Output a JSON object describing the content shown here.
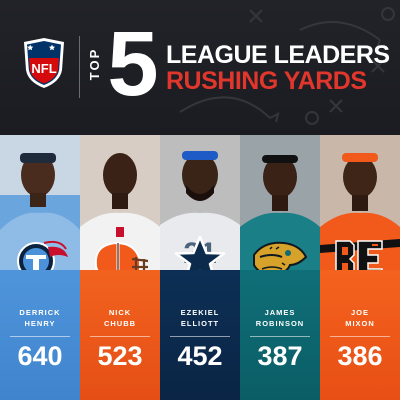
{
  "header": {
    "logo_text": "NFL",
    "top_word": "TOP",
    "top_number": "5",
    "title_line1": "LEAGUE LEADERS",
    "title_line2": "RUSHING YARDS"
  },
  "colors": {
    "background": "#1c1d22",
    "accent_red": "#e0362c"
  },
  "players": [
    {
      "first": "DERRICK",
      "last": "HENRY",
      "yards": "640",
      "team_icon": "titans-logo-icon",
      "panel_color": "#4b92db"
    },
    {
      "first": "NICK",
      "last": "CHUBB",
      "yards": "523",
      "team_icon": "browns-helmet-icon",
      "panel_color": "#f0561f"
    },
    {
      "first": "EZEKIEL",
      "last": "ELLIOTT",
      "yards": "452",
      "team_icon": "cowboys-star-icon",
      "panel_color": "#0b2a4c"
    },
    {
      "first": "JAMES",
      "last": "ROBINSON",
      "yards": "387",
      "team_icon": "jaguars-head-icon",
      "panel_color": "#0f6a73"
    },
    {
      "first": "JOE",
      "last": "MIXON",
      "yards": "386",
      "team_icon": "bengals-logo-icon",
      "panel_color": "#f25a1c"
    }
  ]
}
